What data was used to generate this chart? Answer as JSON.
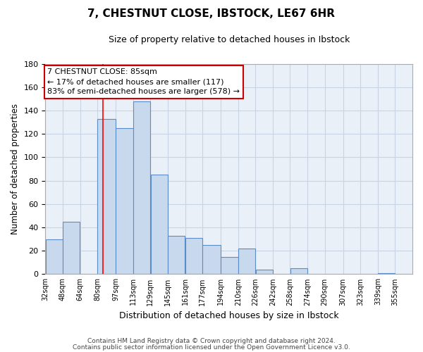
{
  "title": "7, CHESTNUT CLOSE, IBSTOCK, LE67 6HR",
  "subtitle": "Size of property relative to detached houses in Ibstock",
  "xlabel": "Distribution of detached houses by size in Ibstock",
  "ylabel": "Number of detached properties",
  "bar_left_edges": [
    32,
    48,
    64,
    80,
    97,
    113,
    129,
    145,
    161,
    177,
    194,
    210,
    226,
    242,
    258,
    274,
    290,
    307,
    323,
    339
  ],
  "bar_widths": [
    16,
    16,
    16,
    17,
    16,
    16,
    16,
    16,
    16,
    17,
    16,
    16,
    16,
    16,
    16,
    16,
    17,
    16,
    16,
    16
  ],
  "bar_heights": [
    30,
    45,
    0,
    133,
    125,
    148,
    85,
    33,
    31,
    25,
    15,
    22,
    4,
    0,
    5,
    0,
    0,
    0,
    0,
    1
  ],
  "bar_color": "#c9d9ed",
  "bar_edge_color": "#5b8cc8",
  "x_tick_labels": [
    "32sqm",
    "48sqm",
    "64sqm",
    "80sqm",
    "97sqm",
    "113sqm",
    "129sqm",
    "145sqm",
    "161sqm",
    "177sqm",
    "194sqm",
    "210sqm",
    "226sqm",
    "242sqm",
    "258sqm",
    "274sqm",
    "290sqm",
    "307sqm",
    "323sqm",
    "339sqm",
    "355sqm"
  ],
  "ylim": [
    0,
    180
  ],
  "yticks": [
    0,
    20,
    40,
    60,
    80,
    100,
    120,
    140,
    160,
    180
  ],
  "red_line_x": 85,
  "annotation_title": "7 CHESTNUT CLOSE: 85sqm",
  "annotation_line1": "← 17% of detached houses are smaller (117)",
  "annotation_line2": "83% of semi-detached houses are larger (578) →",
  "footer_line1": "Contains HM Land Registry data © Crown copyright and database right 2024.",
  "footer_line2": "Contains public sector information licensed under the Open Government Licence v3.0.",
  "grid_color": "#c8d4e3",
  "bg_color": "#eaf0f8",
  "fig_width": 6.0,
  "fig_height": 5.0,
  "dpi": 100
}
